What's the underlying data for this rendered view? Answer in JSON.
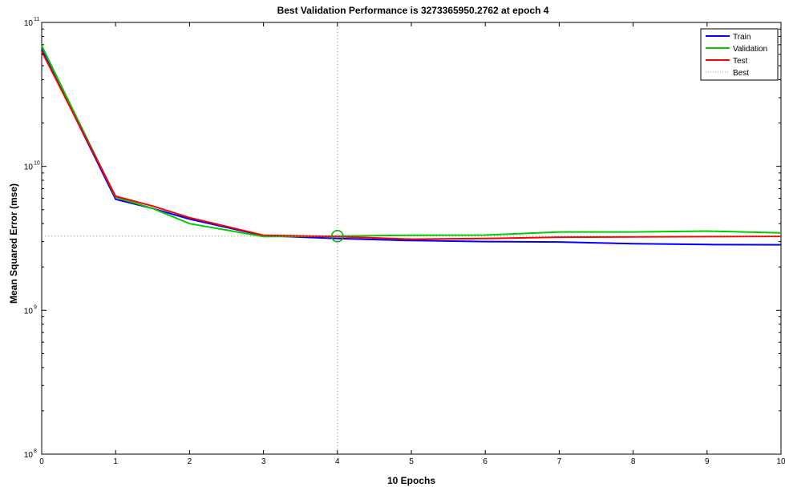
{
  "chart_data": {
    "type": "line",
    "title": "Best Validation Performance is 3273365950.2762 at epoch 4",
    "xlabel": "10 Epochs",
    "ylabel": "Mean Squared Error  (mse)",
    "xlim": [
      0,
      10
    ],
    "ylim": [
      100000000,
      100000000000
    ],
    "yscale": "log",
    "x_ticks": [
      "0",
      "1",
      "2",
      "3",
      "4",
      "5",
      "6",
      "7",
      "8",
      "9",
      "10"
    ],
    "y_ticks": [
      {
        "base": "10",
        "exp": "8",
        "value": 100000000
      },
      {
        "base": "10",
        "exp": "9",
        "value": 1000000000
      },
      {
        "base": "10",
        "exp": "10",
        "value": 10000000000
      },
      {
        "base": "10",
        "exp": "11",
        "value": 100000000000
      }
    ],
    "grid": false,
    "legend_position": "top-right",
    "series": [
      {
        "name": "Train",
        "color": "#0000ff",
        "x": [
          0,
          1,
          1.5,
          2,
          3,
          4,
          5,
          6,
          7,
          8,
          9,
          10
        ],
        "y": [
          65000000000,
          5900000000,
          5100000000,
          4300000000,
          3300000000,
          3150000000,
          3050000000,
          3000000000,
          2980000000,
          2900000000,
          2860000000,
          2850000000
        ]
      },
      {
        "name": "Validation",
        "color": "#00cc00",
        "x": [
          0,
          1,
          1.5,
          2,
          3,
          4,
          5,
          6,
          7,
          8,
          9,
          10
        ],
        "y": [
          69000000000,
          6100000000,
          5100000000,
          4000000000,
          3250000000,
          3273365950,
          3320000000,
          3330000000,
          3500000000,
          3500000000,
          3550000000,
          3450000000
        ]
      },
      {
        "name": "Test",
        "color": "#ff0000",
        "x": [
          0,
          1,
          1.5,
          2,
          3,
          4,
          5,
          6,
          7,
          8,
          9,
          10
        ],
        "y": [
          63000000000,
          6200000000,
          5300000000,
          4400000000,
          3320000000,
          3250000000,
          3120000000,
          3150000000,
          3220000000,
          3230000000,
          3250000000,
          3260000000
        ]
      }
    ],
    "best": {
      "name": "Best",
      "epoch": 4,
      "value": 3273365950.2762,
      "color": "#00aa00"
    }
  }
}
